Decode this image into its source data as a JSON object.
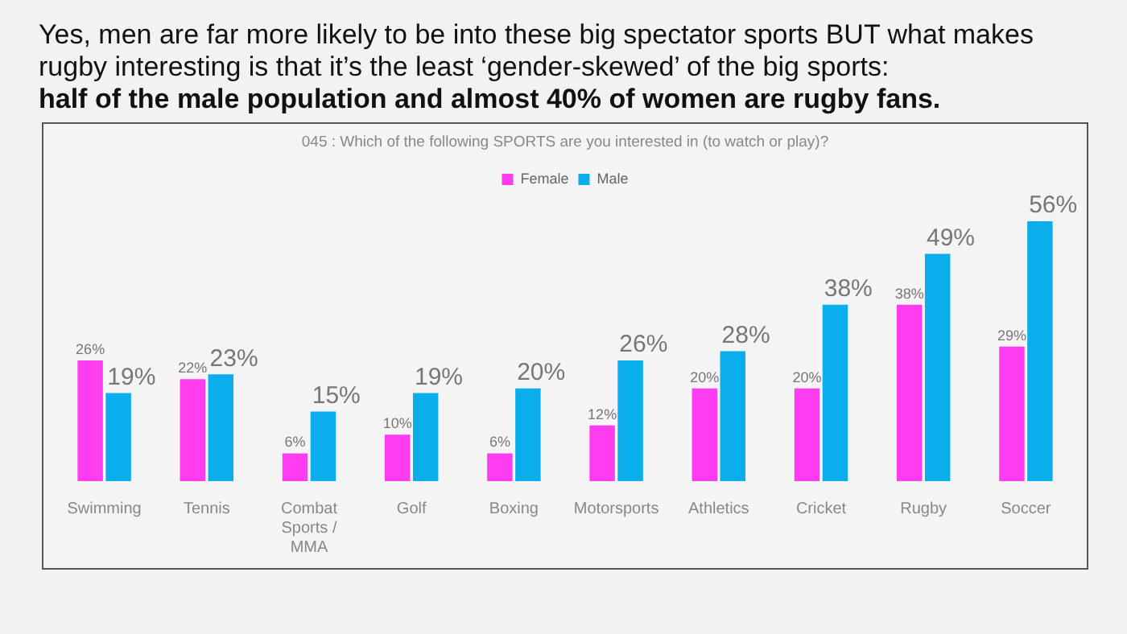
{
  "chart_data": {
    "type": "bar",
    "title": "Yes, men are far more likely to be into these big spectator sports BUT what makes rugby interesting is that it’s the least ‘gender-skewed’ of the big sports:",
    "subtitle": "half of the male population and almost 40% of women are rugby fans.",
    "annotations": [
      "045 : Which of the following SPORTS are you interested in (to watch or play)?"
    ],
    "categories": [
      "Swimming",
      "Tennis",
      "Combat Sports / MMA",
      "Golf",
      "Boxing",
      "Motorsports",
      "Athletics",
      "Cricket",
      "Rugby",
      "Soccer"
    ],
    "series": [
      {
        "name": "Female",
        "color": "#ff3cf0",
        "values": [
          26,
          22,
          6,
          10,
          6,
          12,
          20,
          20,
          38,
          29
        ],
        "value_labels": [
          "26%",
          "22%",
          "6%",
          "10%",
          "6%",
          "12%",
          "20%",
          "20%",
          "38%",
          "29%"
        ]
      },
      {
        "name": "Male",
        "color": "#0aaeea",
        "values": [
          19,
          23,
          15,
          19,
          20,
          26,
          28,
          38,
          49,
          56
        ],
        "value_labels": [
          "19%",
          "23%",
          "15%",
          "19%",
          "20%",
          "26%",
          "28%",
          "38%",
          "49%",
          "56%"
        ]
      }
    ],
    "legend": "top"
  }
}
